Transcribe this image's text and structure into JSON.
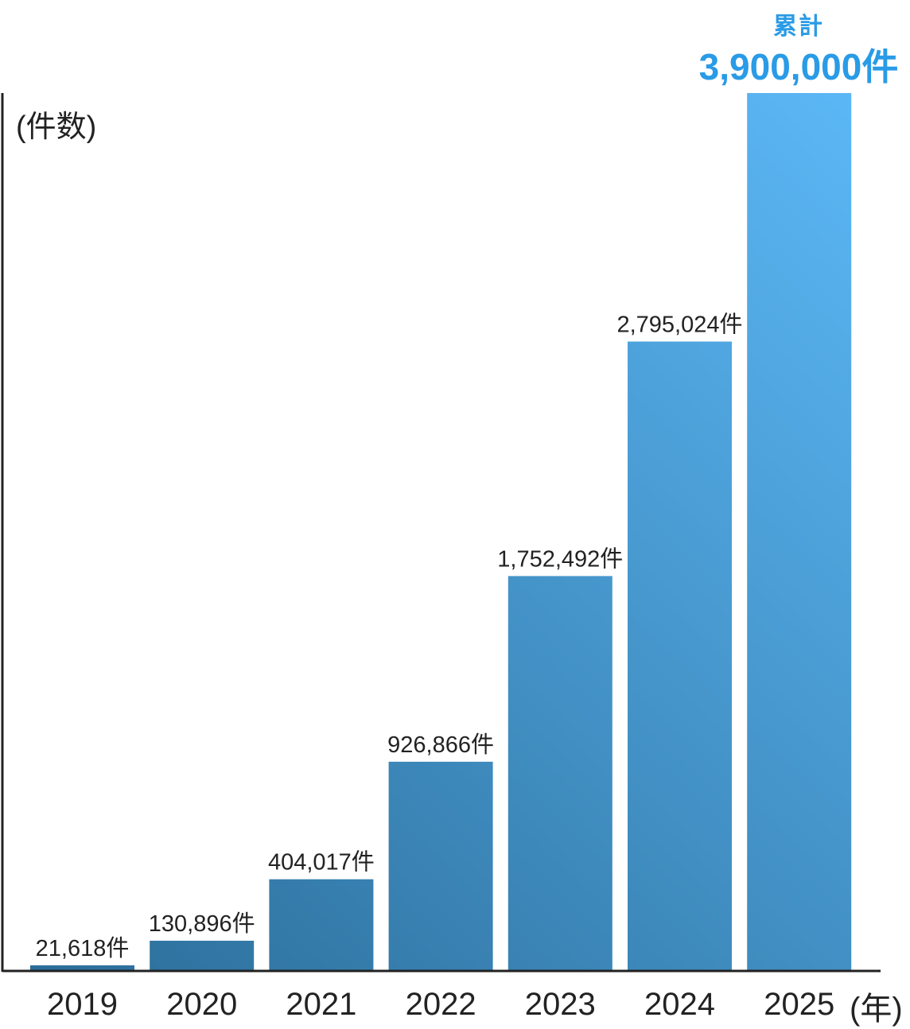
{
  "chart_data": {
    "type": "bar",
    "ylabel": "(件数)",
    "xunit": "(年)",
    "categories": [
      "2019",
      "2020",
      "2021",
      "2022",
      "2023",
      "2024",
      "2025"
    ],
    "values": [
      21618,
      130896,
      404017,
      926866,
      1752492,
      2795024,
      3900000
    ],
    "data_labels": [
      "21,618件",
      "130,896件",
      "404,017件",
      "926,866件",
      "1,752,492件",
      "2,795,024件",
      ""
    ],
    "highlight": {
      "caption": "累計",
      "value_label": "3,900,000件",
      "color": "#2a9be6"
    },
    "bar_gradient": [
      "#2c6e9a",
      "#5bb7f5"
    ],
    "axis_color": "#222222"
  }
}
